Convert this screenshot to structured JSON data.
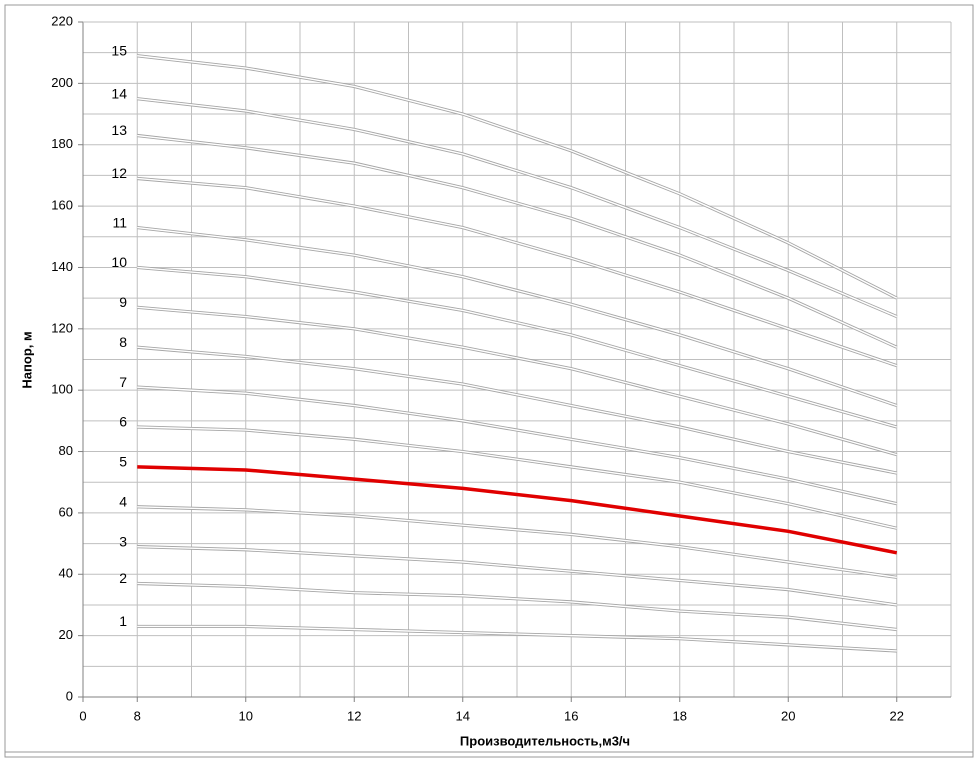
{
  "chart_data": {
    "type": "line",
    "x_label": "Производительность,м3/ч",
    "y_label": "Напор, м",
    "x": [
      8,
      10,
      12,
      14,
      16,
      18,
      20,
      22
    ],
    "xlim": [
      7,
      23
    ],
    "xticks": [
      {
        "value": 7,
        "label": "0"
      },
      8,
      10,
      12,
      14,
      16,
      18,
      20,
      22
    ],
    "xminor": [
      9,
      11,
      13,
      15,
      17,
      19,
      21,
      23
    ],
    "ylim": [
      0,
      220
    ],
    "yticks": [
      0,
      20,
      40,
      60,
      80,
      100,
      120,
      140,
      160,
      180,
      200,
      220
    ],
    "yminor": [
      10,
      30,
      50,
      70,
      90,
      110,
      130,
      150,
      170,
      190,
      210
    ],
    "grid": true,
    "series": [
      {
        "name": "1",
        "color": "#a6a6a6",
        "values": [
          23,
          23,
          22,
          21,
          20,
          19,
          17,
          15
        ]
      },
      {
        "name": "2",
        "color": "#a6a6a6",
        "values": [
          37,
          36,
          34,
          33,
          31,
          28,
          26,
          22
        ]
      },
      {
        "name": "3",
        "color": "#a6a6a6",
        "values": [
          49,
          48,
          46,
          44,
          41,
          38,
          35,
          30
        ]
      },
      {
        "name": "4",
        "color": "#a6a6a6",
        "values": [
          62,
          61,
          59,
          56,
          53,
          49,
          44,
          39
        ]
      },
      {
        "name": "5",
        "color": "#e00000",
        "values": [
          75,
          74,
          71,
          68,
          64,
          59,
          54,
          47
        ]
      },
      {
        "name": "6",
        "color": "#a6a6a6",
        "values": [
          88,
          87,
          84,
          80,
          75,
          70,
          63,
          55
        ]
      },
      {
        "name": "7",
        "color": "#a6a6a6",
        "values": [
          101,
          99,
          95,
          90,
          84,
          78,
          71,
          63
        ]
      },
      {
        "name": "8",
        "color": "#a6a6a6",
        "values": [
          114,
          111,
          107,
          102,
          95,
          88,
          80,
          73
        ]
      },
      {
        "name": "9",
        "color": "#a6a6a6",
        "values": [
          127,
          124,
          120,
          114,
          107,
          98,
          89,
          79
        ]
      },
      {
        "name": "10",
        "color": "#a6a6a6",
        "values": [
          140,
          137,
          132,
          126,
          118,
          108,
          98,
          88
        ]
      },
      {
        "name": "11",
        "color": "#a6a6a6",
        "values": [
          153,
          149,
          144,
          137,
          128,
          118,
          107,
          95
        ]
      },
      {
        "name": "12",
        "color": "#a6a6a6",
        "values": [
          169,
          166,
          160,
          153,
          143,
          132,
          120,
          108
        ]
      },
      {
        "name": "13",
        "color": "#a6a6a6",
        "values": [
          183,
          179,
          174,
          166,
          156,
          144,
          130,
          114
        ]
      },
      {
        "name": "14",
        "color": "#a6a6a6",
        "values": [
          195,
          191,
          185,
          177,
          166,
          153,
          139,
          124
        ]
      },
      {
        "name": "15",
        "color": "#a6a6a6",
        "values": [
          209,
          205,
          199,
          190,
          178,
          164,
          148,
          130
        ]
      }
    ],
    "highlight_color": "#e00000"
  }
}
